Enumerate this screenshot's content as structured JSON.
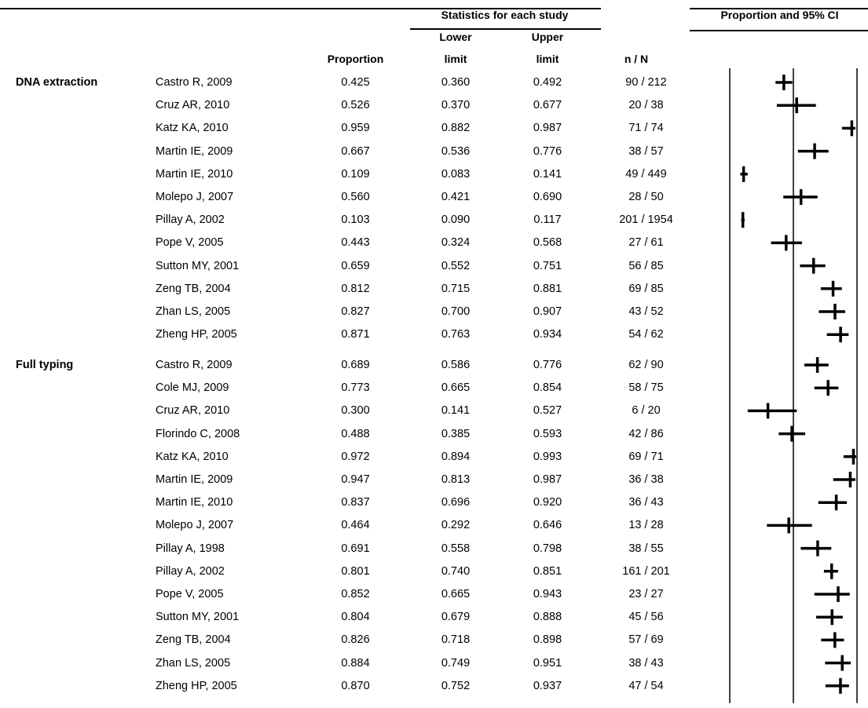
{
  "header": {
    "stats_title": "Statistics  for each study",
    "plot_title": "Proportion and 95% CI",
    "col_proportion": "Proportion",
    "col_lower_1": "Lower",
    "col_lower_2": "limit",
    "col_upper_1": "Upper",
    "col_upper_2": "limit",
    "col_nN": "n / N"
  },
  "axis": {
    "ticks": [
      "0.00",
      "0.50",
      "1.00"
    ],
    "tick_values": [
      0,
      0.5,
      1
    ]
  },
  "groups": [
    {
      "label": "DNA extraction",
      "rows": [
        {
          "study": "Castro R, 2009",
          "proportion": "0.425",
          "lower": "0.360",
          "upper": "0.492",
          "nN": "90 / 212"
        },
        {
          "study": "Cruz AR, 2010",
          "proportion": "0.526",
          "lower": "0.370",
          "upper": "0.677",
          "nN": "20 / 38"
        },
        {
          "study": "Katz KA, 2010",
          "proportion": "0.959",
          "lower": "0.882",
          "upper": "0.987",
          "nN": "71 / 74"
        },
        {
          "study": "Martin IE, 2009",
          "proportion": "0.667",
          "lower": "0.536",
          "upper": "0.776",
          "nN": "38 / 57"
        },
        {
          "study": "Martin IE, 2010",
          "proportion": "0.109",
          "lower": "0.083",
          "upper": "0.141",
          "nN": "49 / 449"
        },
        {
          "study": "Molepo J, 2007",
          "proportion": "0.560",
          "lower": "0.421",
          "upper": "0.690",
          "nN": "28 / 50"
        },
        {
          "study": "Pillay A, 2002",
          "proportion": "0.103",
          "lower": "0.090",
          "upper": "0.117",
          "nN": "201 / 1954"
        },
        {
          "study": "Pope V,  2005",
          "proportion": "0.443",
          "lower": "0.324",
          "upper": "0.568",
          "nN": "27 / 61"
        },
        {
          "study": "Sutton MY,  2001",
          "proportion": "0.659",
          "lower": "0.552",
          "upper": "0.751",
          "nN": "56 / 85"
        },
        {
          "study": "Zeng TB, 2004",
          "proportion": "0.812",
          "lower": "0.715",
          "upper": "0.881",
          "nN": "69 / 85"
        },
        {
          "study": "Zhan LS, 2005",
          "proportion": "0.827",
          "lower": "0.700",
          "upper": "0.907",
          "nN": "43 / 52"
        },
        {
          "study": "Zheng HP, 2005",
          "proportion": "0.871",
          "lower": "0.763",
          "upper": "0.934",
          "nN": "54 / 62"
        }
      ]
    },
    {
      "label": "Full typing",
      "rows": [
        {
          "study": "Castro R, 2009",
          "proportion": "0.689",
          "lower": "0.586",
          "upper": "0.776",
          "nN": "62 / 90"
        },
        {
          "study": "Cole MJ, 2009",
          "proportion": "0.773",
          "lower": "0.665",
          "upper": "0.854",
          "nN": "58 / 75"
        },
        {
          "study": "Cruz AR, 2010",
          "proportion": "0.300",
          "lower": "0.141",
          "upper": "0.527",
          "nN": "6 / 20"
        },
        {
          "study": "Florindo C, 2008",
          "proportion": "0.488",
          "lower": "0.385",
          "upper": "0.593",
          "nN": "42 / 86"
        },
        {
          "study": "Katz KA, 2010",
          "proportion": "0.972",
          "lower": "0.894",
          "upper": "0.993",
          "nN": "69 / 71"
        },
        {
          "study": "Martin IE, 2009",
          "proportion": "0.947",
          "lower": "0.813",
          "upper": "0.987",
          "nN": "36 / 38"
        },
        {
          "study": "Martin IE, 2010",
          "proportion": "0.837",
          "lower": "0.696",
          "upper": "0.920",
          "nN": "36 / 43"
        },
        {
          "study": "Molepo J, 2007",
          "proportion": "0.464",
          "lower": "0.292",
          "upper": "0.646",
          "nN": "13 / 28"
        },
        {
          "study": "Pillay A, 1998",
          "proportion": "0.691",
          "lower": "0.558",
          "upper": "0.798",
          "nN": "38 / 55"
        },
        {
          "study": "Pillay A, 2002",
          "proportion": "0.801",
          "lower": "0.740",
          "upper": "0.851",
          "nN": "161 / 201"
        },
        {
          "study": "Pope V,  2005",
          "proportion": "0.852",
          "lower": "0.665",
          "upper": "0.943",
          "nN": "23 / 27"
        },
        {
          "study": "Sutton MY,  2001",
          "proportion": "0.804",
          "lower": "0.679",
          "upper": "0.888",
          "nN": "45 / 56"
        },
        {
          "study": "Zeng TB, 2004",
          "proportion": "0.826",
          "lower": "0.718",
          "upper": "0.898",
          "nN": "57 / 69"
        },
        {
          "study": "Zhan LS, 2005",
          "proportion": "0.884",
          "lower": "0.749",
          "upper": "0.951",
          "nN": "38 / 43"
        },
        {
          "study": "Zheng HP, 2005",
          "proportion": "0.870",
          "lower": "0.752",
          "upper": "0.937",
          "nN": "47 / 54"
        }
      ]
    }
  ],
  "chart_data": {
    "type": "forest",
    "title": "Proportion and 95% CI",
    "xlim": [
      0,
      1
    ],
    "grid": false,
    "series": [
      {
        "name": "DNA extraction",
        "values": [
          0.425,
          0.526,
          0.959,
          0.667,
          0.109,
          0.56,
          0.103,
          0.443,
          0.659,
          0.812,
          0.827,
          0.871
        ],
        "lower": [
          0.36,
          0.37,
          0.882,
          0.536,
          0.083,
          0.421,
          0.09,
          0.324,
          0.552,
          0.715,
          0.7,
          0.763
        ],
        "upper": [
          0.492,
          0.677,
          0.987,
          0.776,
          0.141,
          0.69,
          0.117,
          0.568,
          0.751,
          0.881,
          0.907,
          0.934
        ]
      },
      {
        "name": "Full typing",
        "values": [
          0.689,
          0.773,
          0.3,
          0.488,
          0.972,
          0.947,
          0.837,
          0.464,
          0.691,
          0.801,
          0.852,
          0.804,
          0.826,
          0.884,
          0.87
        ],
        "lower": [
          0.586,
          0.665,
          0.141,
          0.385,
          0.894,
          0.813,
          0.696,
          0.292,
          0.558,
          0.74,
          0.665,
          0.679,
          0.718,
          0.749,
          0.752
        ],
        "upper": [
          0.776,
          0.854,
          0.527,
          0.593,
          0.993,
          0.987,
          0.92,
          0.646,
          0.798,
          0.851,
          0.943,
          0.888,
          0.898,
          0.951,
          0.937
        ]
      }
    ]
  }
}
